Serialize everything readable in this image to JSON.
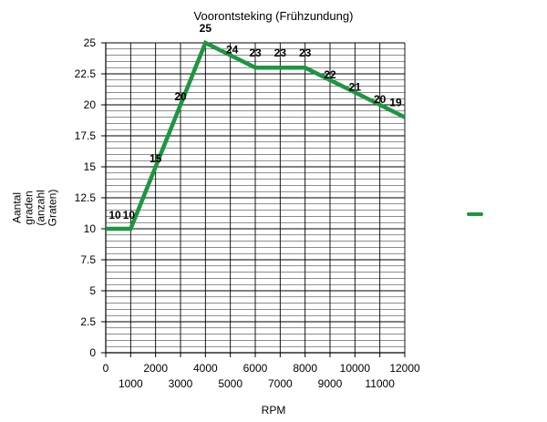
{
  "chart_data": {
    "type": "line",
    "title": "Voorontsteking (Frühzundung)",
    "xlabel": "RPM",
    "ylabel": [
      "Aantal",
      "graden",
      "(anzahl",
      "Graten)"
    ],
    "x": [
      0,
      1000,
      2000,
      3000,
      4000,
      5000,
      6000,
      7000,
      8000,
      9000,
      10000,
      11000,
      12000
    ],
    "series": [
      {
        "values": [
          10,
          10,
          15,
          20,
          25,
          24,
          23,
          23,
          23,
          22,
          21,
          20,
          19
        ]
      }
    ],
    "data_labels": [
      "10",
      "10",
      "15",
      "20",
      "25",
      "24",
      "23",
      "23",
      "23",
      "22",
      "21",
      "20",
      "19"
    ],
    "xlim": [
      0,
      12000
    ],
    "ylim": [
      0,
      25
    ],
    "x_ticks": [
      "0",
      "1000",
      "2000",
      "3000",
      "4000",
      "5000",
      "6000",
      "7000",
      "8000",
      "9000",
      "10000",
      "11000",
      "12000"
    ],
    "y_ticks": [
      "0",
      "2.5",
      "5",
      "7.5",
      "10",
      "12.5",
      "15",
      "17.5",
      "20",
      "22.5",
      "25"
    ],
    "grid": true,
    "legend": "right",
    "line_color": "#1e9641",
    "grid_color": "#000000"
  }
}
